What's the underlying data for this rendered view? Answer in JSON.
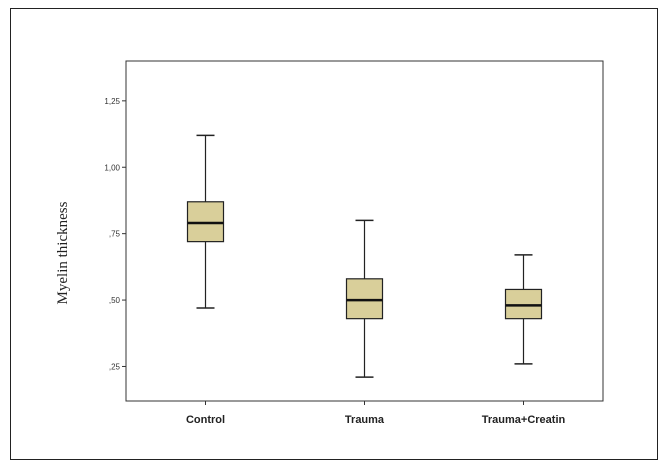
{
  "chart_data": {
    "type": "boxplot",
    "title": "",
    "xlabel": "",
    "ylabel": "Myelin thickness",
    "ylim": [
      0.12,
      1.4
    ],
    "yticks": [
      0.25,
      0.5,
      0.75,
      1.0,
      1.25
    ],
    "ytick_labels": [
      ",25",
      ",50",
      ",75",
      "1,00",
      "1,25"
    ],
    "grid": false,
    "categories": [
      "Control",
      "Trauma",
      "Trauma+Creatin"
    ],
    "boxes": [
      {
        "category": "Control",
        "min": 0.47,
        "q1": 0.72,
        "median": 0.79,
        "q3": 0.87,
        "max": 1.12
      },
      {
        "category": "Trauma",
        "min": 0.21,
        "q1": 0.43,
        "median": 0.5,
        "q3": 0.58,
        "max": 0.8
      },
      {
        "category": "Trauma+Creatin",
        "min": 0.26,
        "q1": 0.43,
        "median": 0.48,
        "q3": 0.54,
        "max": 0.67
      }
    ],
    "colors": {
      "box_fill": "#d9cf9a",
      "box_stroke": "#222222",
      "median": "#111111"
    }
  }
}
